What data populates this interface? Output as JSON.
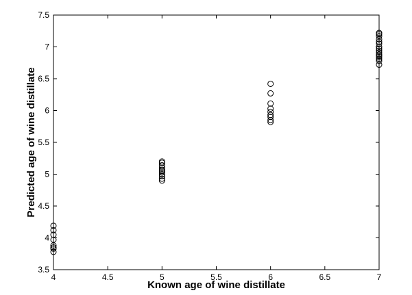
{
  "chart_data": {
    "type": "scatter",
    "title": "",
    "xlabel": "Known age of wine distillate",
    "ylabel": "Predicted age of wine distillate",
    "xlim": [
      4,
      7
    ],
    "ylim": [
      3.5,
      7.5
    ],
    "xticks": [
      4,
      4.5,
      5,
      5.5,
      6,
      6.5,
      7
    ],
    "yticks": [
      3.5,
      4,
      4.5,
      5,
      5.5,
      6,
      6.5,
      7,
      7.5
    ],
    "grid": false,
    "marker": "open-circle",
    "marker_color": "#000000",
    "series": [
      {
        "x": [
          4,
          4,
          4,
          4,
          4,
          4,
          4,
          4,
          5,
          5,
          5,
          5,
          5,
          5,
          5,
          5,
          5,
          5,
          5,
          6,
          6,
          6,
          6,
          6,
          6,
          6,
          6,
          6,
          7,
          7,
          7,
          7,
          7,
          7,
          7,
          7,
          7,
          7,
          7,
          7,
          7,
          7,
          7,
          7
        ],
        "y": [
          4.19,
          4.12,
          4.05,
          3.97,
          3.88,
          3.85,
          3.83,
          3.78,
          5.2,
          5.18,
          5.14,
          5.1,
          5.07,
          5.05,
          5.03,
          5.0,
          4.97,
          4.93,
          4.9,
          6.42,
          6.27,
          6.11,
          6.03,
          5.98,
          5.93,
          5.9,
          5.85,
          5.82,
          7.22,
          7.2,
          7.17,
          7.12,
          7.08,
          7.05,
          7.0,
          6.97,
          6.94,
          6.91,
          6.88,
          6.86,
          6.84,
          6.81,
          6.78,
          6.72
        ]
      }
    ]
  }
}
